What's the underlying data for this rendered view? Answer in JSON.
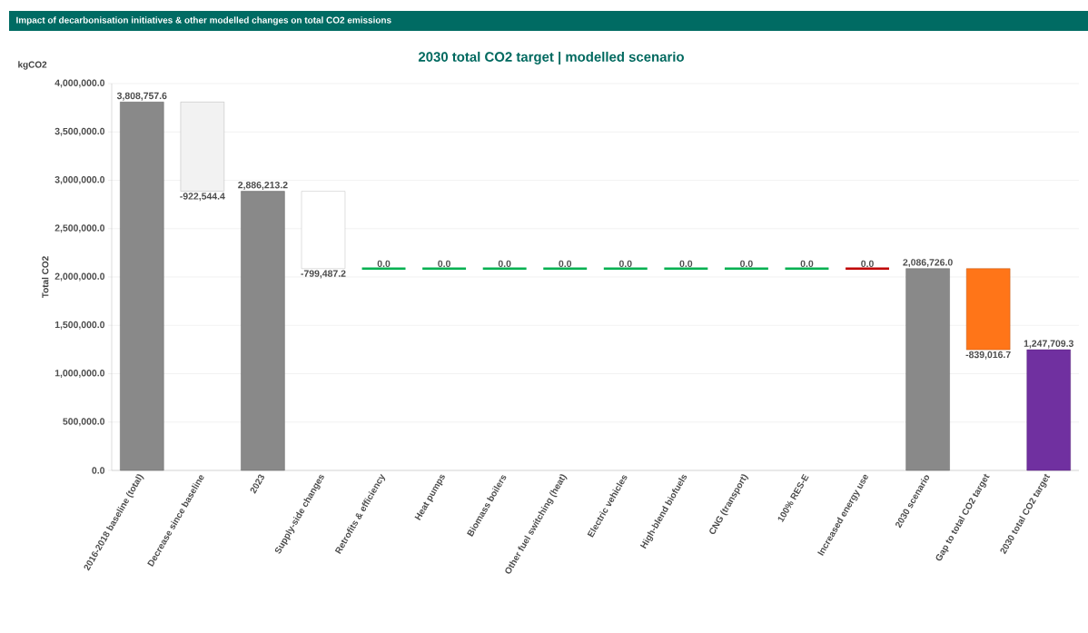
{
  "chart_data": {
    "type": "bar",
    "title": "Impact of decarbonisation initiatives & other modelled changes on total CO2 emissions",
    "subtitle": "2030 total CO2 target | modelled scenario",
    "ylabel": "Total CO2",
    "annotations": [
      "kgCO2"
    ],
    "categories": [
      "2016-2018 baseline (total)",
      "Decrease since baseline",
      "2023",
      "Supply-side changes",
      "Retrofits & efficiency",
      "Heat pumps",
      "Biomass boilers",
      "Other fuel switching (heat)",
      "Electric vehicles",
      "High-blend biofuels",
      "CNG (transport)",
      "100% RES-E",
      "Increased energy use",
      "2030 scenario",
      "Gap to total CO2 target",
      "2030 total CO2 target"
    ],
    "values": [
      3808757.6,
      -922544.4,
      2886213.2,
      -799487.2,
      0,
      0,
      0,
      0,
      0,
      0,
      0,
      0,
      0,
      2086726.0,
      -839016.7,
      1247709.3
    ],
    "base": [
      0,
      3808757.6,
      0,
      2886213.2,
      2086726.0,
      2086726.0,
      2086726.0,
      2086726.0,
      2086726.0,
      2086726.0,
      2086726.0,
      2086726.0,
      2086726.0,
      0,
      2086726.0,
      0
    ],
    "colors": [
      "#898989",
      "#f2f2f2",
      "#898989",
      "#ffffff",
      "#00b050",
      "#00b050",
      "#00b050",
      "#00b050",
      "#00b050",
      "#00b050",
      "#00b050",
      "#00b050",
      "#c00000",
      "#898989",
      "#ff7518",
      "#7030a0"
    ],
    "value_labels": [
      "3,808,757.6",
      "-922,544.4",
      "2,886,213.2",
      "-799,487.2",
      "0.0",
      "0.0",
      "0.0",
      "0.0",
      "0.0",
      "0.0",
      "0.0",
      "0.0",
      "0.0",
      "2,086,726.0",
      "-839,016.7",
      "1,247,709.3"
    ],
    "ylim": [
      0,
      4000000
    ],
    "yticks": [
      {
        "value": 0,
        "label": "0.0"
      },
      {
        "value": 500000,
        "label": "500,000.0"
      },
      {
        "value": 1000000,
        "label": "1,000,000.0"
      },
      {
        "value": 1500000,
        "label": "1,500,000.0"
      },
      {
        "value": 2000000,
        "label": "2,000,000.0"
      },
      {
        "value": 2500000,
        "label": "2,500,000.0"
      },
      {
        "value": 3000000,
        "label": "3,000,000.0"
      },
      {
        "value": 3500000,
        "label": "3,500,000.0"
      },
      {
        "value": 4000000,
        "label": "4,000,000.0"
      }
    ],
    "grid": "y"
  }
}
